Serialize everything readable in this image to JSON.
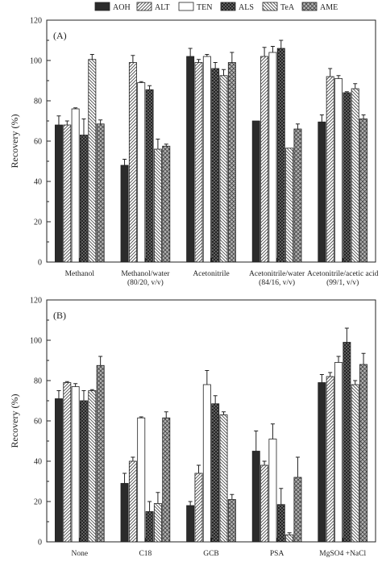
{
  "legend": {
    "entries": [
      {
        "label": "AOH",
        "pattern": "solid"
      },
      {
        "label": "ALT",
        "pattern": "diag-right"
      },
      {
        "label": "TEN",
        "pattern": "white"
      },
      {
        "label": "ALS",
        "pattern": "cross"
      },
      {
        "label": "TeA",
        "pattern": "diag-left"
      },
      {
        "label": "AME",
        "pattern": "cross-light"
      }
    ]
  },
  "colors": {
    "solid": "#2b2b2b",
    "hatch": "#4a4a4a",
    "axis": "#222222"
  },
  "chart_data": [
    {
      "type": "bar",
      "panel_label": "(A)",
      "ylabel": "Recovery (%)",
      "ylim": [
        0,
        120
      ],
      "yticks": [
        "0",
        "20",
        "40",
        "60",
        "80",
        "100",
        "120"
      ],
      "categories": [
        [
          "Methanol"
        ],
        [
          "Methanol/water",
          "(80/20, v/v)"
        ],
        [
          "Acetonitrile"
        ],
        [
          "Acetonitrile/water",
          "(84/16, v/v)"
        ],
        [
          "Acetonitrile/acetic acid",
          "(99/1, v/v)"
        ]
      ],
      "series": [
        {
          "name": "AOH",
          "values": [
            68,
            48,
            102,
            70,
            69.5
          ],
          "errors": [
            4.5,
            3,
            4,
            0,
            3.5
          ]
        },
        {
          "name": "ALT",
          "values": [
            68,
            99,
            99,
            102,
            92
          ],
          "errors": [
            2,
            3.5,
            1.5,
            4.5,
            4
          ]
        },
        {
          "name": "TEN",
          "values": [
            76,
            89,
            102,
            104,
            91
          ],
          "errors": [
            0.5,
            0.5,
            1,
            3,
            1.5
          ]
        },
        {
          "name": "ALS",
          "values": [
            63,
            85.5,
            96,
            106,
            84
          ],
          "errors": [
            8,
            2,
            3,
            4,
            0.5
          ]
        },
        {
          "name": "TeA",
          "values": [
            100.5,
            56,
            92.5,
            56.5,
            86
          ],
          "errors": [
            2.5,
            5,
            3,
            0,
            2.5
          ]
        },
        {
          "name": "AME",
          "values": [
            68.5,
            57.5,
            99,
            66,
            71
          ],
          "errors": [
            2,
            1,
            5,
            2.5,
            2
          ]
        }
      ]
    },
    {
      "type": "bar",
      "panel_label": "(B)",
      "ylabel": "Recovery (%)",
      "ylim": [
        0,
        120
      ],
      "yticks": [
        "0",
        "20",
        "40",
        "60",
        "80",
        "100",
        "120"
      ],
      "categories": [
        [
          "None"
        ],
        [
          "C18"
        ],
        [
          "GCB"
        ],
        [
          "PSA"
        ],
        [
          "MgSO4 +NaCl"
        ]
      ],
      "series": [
        {
          "name": "AOH",
          "values": [
            71,
            29,
            18,
            45,
            79
          ],
          "errors": [
            4,
            5,
            2,
            10,
            4
          ]
        },
        {
          "name": "ALT",
          "values": [
            79,
            40,
            34,
            38,
            82
          ],
          "errors": [
            0.5,
            2,
            4,
            2,
            2
          ]
        },
        {
          "name": "TEN",
          "values": [
            77,
            61.5,
            78,
            51,
            89
          ],
          "errors": [
            1.5,
            0.5,
            7,
            7.5,
            3
          ]
        },
        {
          "name": "ALS",
          "values": [
            70,
            15,
            68.5,
            18.5,
            99
          ],
          "errors": [
            5,
            5,
            4,
            8,
            7
          ]
        },
        {
          "name": "TeA",
          "values": [
            75,
            19,
            63,
            3.5,
            78
          ],
          "errors": [
            0.5,
            5.5,
            1.5,
            1,
            2
          ]
        },
        {
          "name": "AME",
          "values": [
            87.5,
            61.5,
            21,
            32,
            88
          ],
          "errors": [
            4.5,
            3,
            2.5,
            10,
            5.5
          ]
        }
      ]
    }
  ]
}
